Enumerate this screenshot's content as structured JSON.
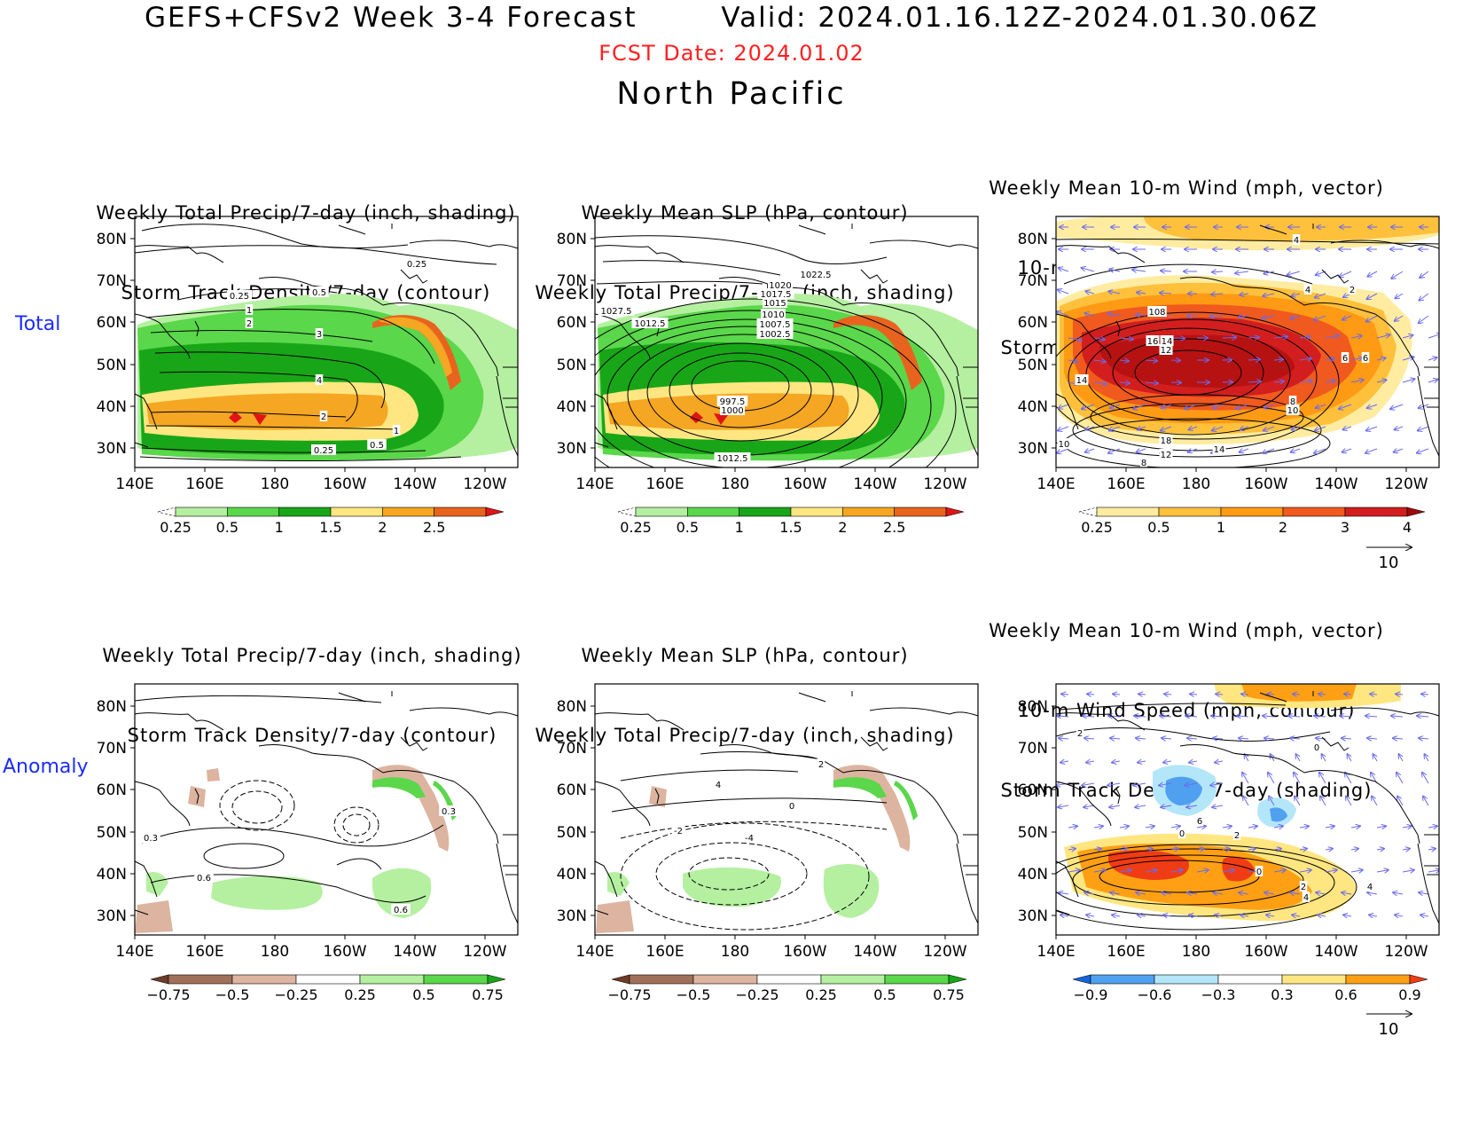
{
  "header": {
    "title": "GEFS+CFSv2 Week 3-4 Forecast",
    "valid": "Valid: 2024.01.16.12Z-2024.01.30.06Z",
    "fcst_date": "FCST Date: 2024.01.02",
    "region": "North Pacific"
  },
  "row_labels": {
    "total": "Total",
    "anomaly": "Anomaly"
  },
  "panel_titles": {
    "precip": [
      "Weekly Total Precip/7-day (inch, shading)",
      "Storm Track Density/7-day (contour)"
    ],
    "slp": [
      "Weekly Mean SLP (hPa, contour)",
      "Weekly Total Precip/7-day (inch, shading)"
    ],
    "wind": [
      "Weekly Mean 10-m Wind (mph, vector)",
      "10-m Wind Speed (mph, contour)",
      "Storm Track Density/7-day (shading)"
    ]
  },
  "axes": {
    "lat_labels": [
      "80N",
      "70N",
      "60N",
      "50N",
      "40N",
      "30N"
    ],
    "lon_labels": [
      "140E",
      "160E",
      "180",
      "160W",
      "140W",
      "120W"
    ]
  },
  "colorbars": {
    "precip_total": {
      "labels": [
        "0.25",
        "0.5",
        "1",
        "1.5",
        "2",
        "2.5"
      ],
      "colors": [
        "#ffffff",
        "#b4f0a0",
        "#5ad74a",
        "#18a618",
        "#ffe680",
        "#f5a623",
        "#e8641e",
        "#e01414"
      ]
    },
    "storm_total": {
      "labels": [
        "0.25",
        "0.5",
        "1",
        "2",
        "3",
        "4"
      ],
      "colors": [
        "#ffffff",
        "#ffeca0",
        "#ffc03c",
        "#ff9a14",
        "#f05a1e",
        "#d21e1e",
        "#a00a0a"
      ]
    },
    "precip_anom": {
      "labels": [
        "−0.75",
        "−0.5",
        "−0.25",
        "0.25",
        "0.5",
        "0.75"
      ],
      "colors": [
        "#6e3c28",
        "#a0705a",
        "#dcb4a0",
        "#ffffff",
        "#b4f0a0",
        "#5ad74a",
        "#18a618"
      ]
    },
    "storm_anom": {
      "labels": [
        "−0.9",
        "−0.6",
        "−0.3",
        "0.3",
        "0.6",
        "0.9"
      ],
      "colors": [
        "#1464dc",
        "#50a0f0",
        "#b4e6fa",
        "#ffffff",
        "#ffe680",
        "#ffa014",
        "#f03c14"
      ]
    }
  },
  "vector_ref": "10",
  "contour_labels": {
    "precip_total": [
      "0.25",
      "0.5",
      "0.25",
      "1",
      "2",
      "3",
      "4",
      "2",
      "1",
      "0.25",
      "0.5"
    ],
    "slp_total": [
      "1022.5",
      "1020",
      "1017.5",
      "1015",
      "1010",
      "1007.5",
      "1002.5",
      "1027.5",
      "1012.5",
      "997.5",
      "1000",
      "1012.5"
    ],
    "wind_total": [
      "4",
      "4",
      "2",
      "16",
      "14",
      "12",
      "14",
      "6",
      "6",
      "8",
      "10",
      "10",
      "18",
      "12",
      "14",
      "8",
      "108"
    ],
    "precip_anom": [
      "0.3",
      "0.6",
      "0.6",
      "0.3"
    ],
    "slp_anom": [
      "2",
      "4",
      "0",
      "-2",
      "-4"
    ],
    "wind_anom": [
      "2",
      "0",
      "6",
      "0",
      "2",
      "0",
      "2",
      "4",
      "4"
    ]
  },
  "colors": {
    "title_red": "#ff2020",
    "row_label_blue": "#1a2cff",
    "wind_vector": "#6a6aee"
  }
}
